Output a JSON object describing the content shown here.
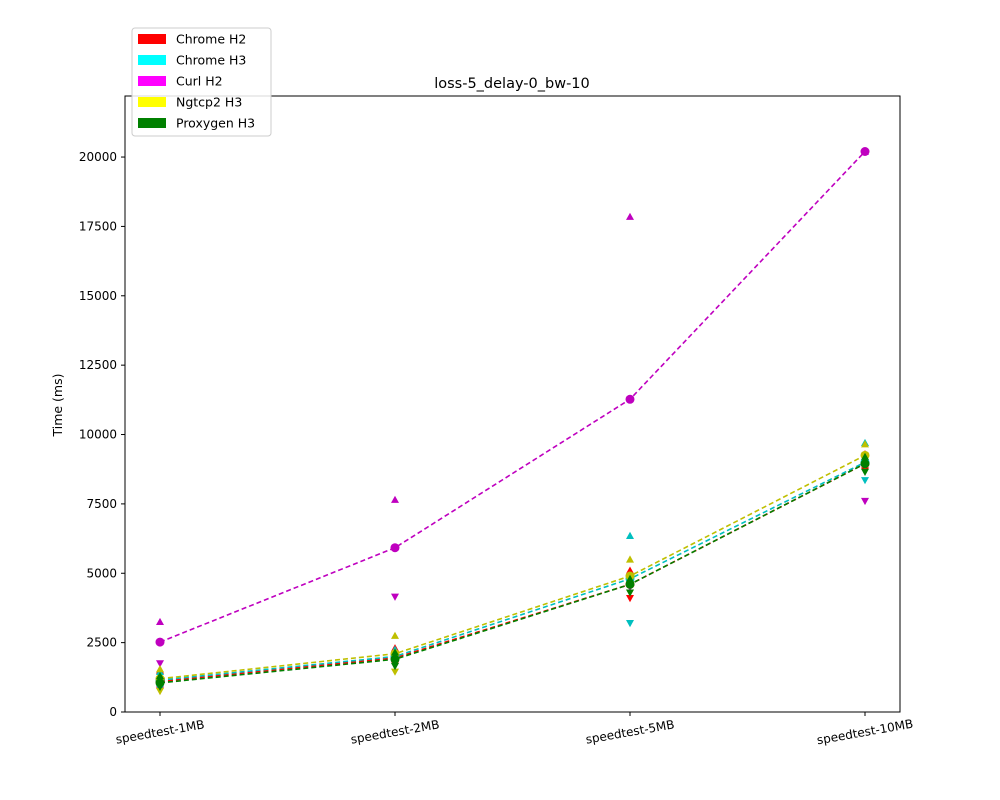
{
  "chart_data": {
    "type": "line",
    "title": "loss-5_delay-0_bw-10",
    "xlabel": "",
    "ylabel": "Time (ms)",
    "ylim": [
      0,
      22200
    ],
    "yticks": [
      0,
      2500,
      5000,
      7500,
      10000,
      12500,
      15000,
      17500,
      20000
    ],
    "categories": [
      "speedtest-1MB",
      "speedtest-2MB",
      "speedtest-5MB",
      "speedtest-10MB"
    ],
    "grid": false,
    "legend": "top-left, outside above plot",
    "series": [
      {
        "name": "Chrome H2",
        "color": "#ff0000",
        "values": [
          1100,
          1950,
          4600,
          8950
        ],
        "max": [
          1500,
          2300,
          5100,
          9300
        ],
        "min": [
          800,
          1700,
          4100,
          8700
        ]
      },
      {
        "name": "Chrome H3",
        "color": "#00ffff",
        "marker_color": "#00bfbf",
        "values": [
          1150,
          2000,
          4800,
          9000
        ],
        "max": [
          1450,
          2250,
          6350,
          9700
        ],
        "min": [
          850,
          1750,
          3200,
          8350
        ]
      },
      {
        "name": "Curl H2",
        "color": "#ff00ff",
        "marker_color": "#bf00bf",
        "values": [
          2520,
          5920,
          11270,
          20200
        ],
        "max": [
          3250,
          7650,
          17850,
          20200
        ],
        "min": [
          1750,
          4150,
          4500,
          7600
        ]
      },
      {
        "name": "Ngtcp2 H3",
        "color": "#ffff00",
        "marker_color": "#bfbf00",
        "values": [
          1200,
          2100,
          4900,
          9250
        ],
        "max": [
          1550,
          2750,
          5500,
          9650
        ],
        "min": [
          750,
          1450,
          4300,
          8900
        ]
      },
      {
        "name": "Proxygen H3",
        "color": "#008000",
        "values": [
          1050,
          1900,
          4600,
          8950
        ],
        "max": [
          1300,
          2150,
          4800,
          9200
        ],
        "min": [
          900,
          1650,
          4300,
          8650
        ]
      }
    ]
  }
}
